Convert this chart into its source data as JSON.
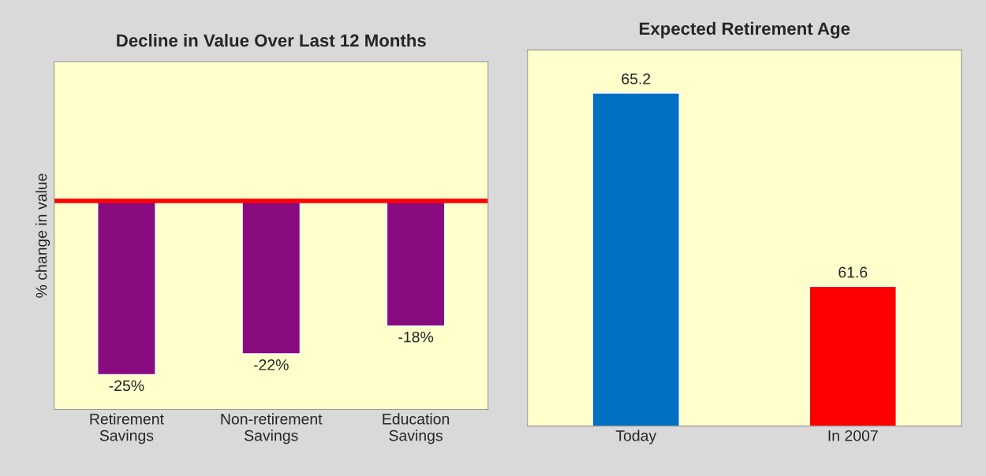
{
  "chart_data": [
    {
      "type": "bar",
      "title": "Decline in Value Over Last 12 Months",
      "ylabel": "% change in value",
      "categories": [
        "Retirement\nSavings",
        "Non-retirement\nSavings",
        "Education\nSavings"
      ],
      "values": [
        -25,
        -22,
        -18
      ],
      "value_labels": [
        "-25%",
        "-22%",
        "-18%"
      ],
      "color": "#8a0a80",
      "ylim": [
        -30,
        20
      ],
      "tick_labels": "x",
      "ref_lines": [
        {
          "axis": "y",
          "value": 0,
          "color": "#ff0000"
        }
      ],
      "grid": false
    },
    {
      "type": "bar",
      "title": "Expected Retirement Age",
      "categories": [
        "Today",
        "In 2007"
      ],
      "values": [
        65.2,
        61.6
      ],
      "colors": [
        "#0070c0",
        "#ff0000"
      ],
      "ylim": [
        59,
        66
      ],
      "tick_labels": "x",
      "data_labels": true,
      "grid": false
    }
  ]
}
